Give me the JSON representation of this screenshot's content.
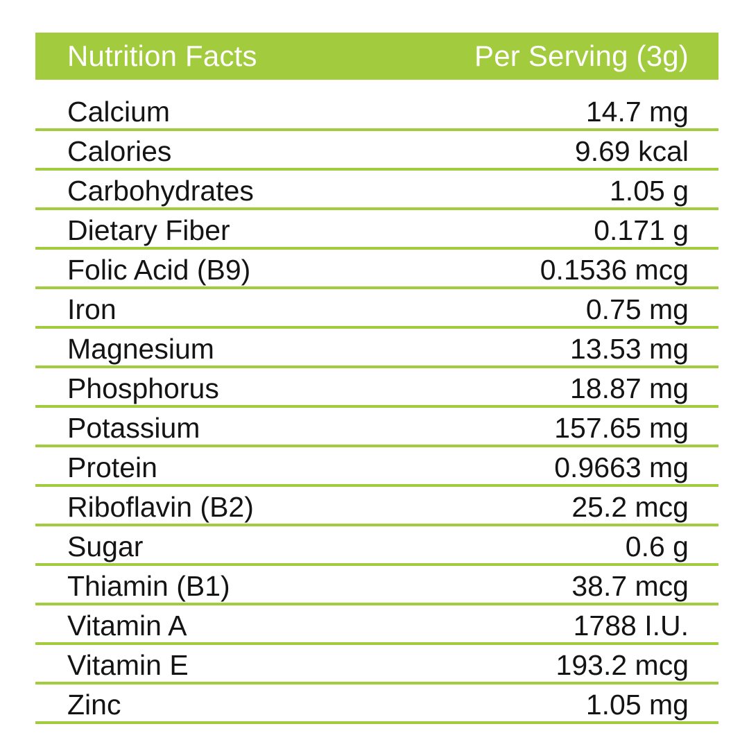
{
  "header": {
    "title": "Nutrition Facts",
    "serving": "Per Serving (3g)"
  },
  "colors": {
    "accent": "#a2cb3e",
    "text": "#141414",
    "header_text": "#ffffff"
  },
  "rows": [
    {
      "nutrient": "Calcium",
      "amount": "14.7 mg"
    },
    {
      "nutrient": "Calories",
      "amount": "9.69 kcal"
    },
    {
      "nutrient": "Carbohydrates",
      "amount": "1.05 g"
    },
    {
      "nutrient": "Dietary Fiber",
      "amount": "0.171 g"
    },
    {
      "nutrient": "Folic Acid (B9)",
      "amount": "0.1536 mcg"
    },
    {
      "nutrient": "Iron",
      "amount": "0.75 mg"
    },
    {
      "nutrient": "Magnesium",
      "amount": "13.53 mg"
    },
    {
      "nutrient": "Phosphorus",
      "amount": "18.87 mg"
    },
    {
      "nutrient": "Potassium",
      "amount": "157.65 mg"
    },
    {
      "nutrient": "Protein",
      "amount": "0.9663 mg"
    },
    {
      "nutrient": "Riboflavin (B2)",
      "amount": "25.2 mcg"
    },
    {
      "nutrient": "Sugar",
      "amount": "0.6 g"
    },
    {
      "nutrient": "Thiamin (B1)",
      "amount": "38.7 mcg"
    },
    {
      "nutrient": "Vitamin A",
      "amount": "1788 I.U."
    },
    {
      "nutrient": "Vitamin E",
      "amount": "193.2 mcg"
    },
    {
      "nutrient": "Zinc",
      "amount": "1.05 mg"
    }
  ]
}
